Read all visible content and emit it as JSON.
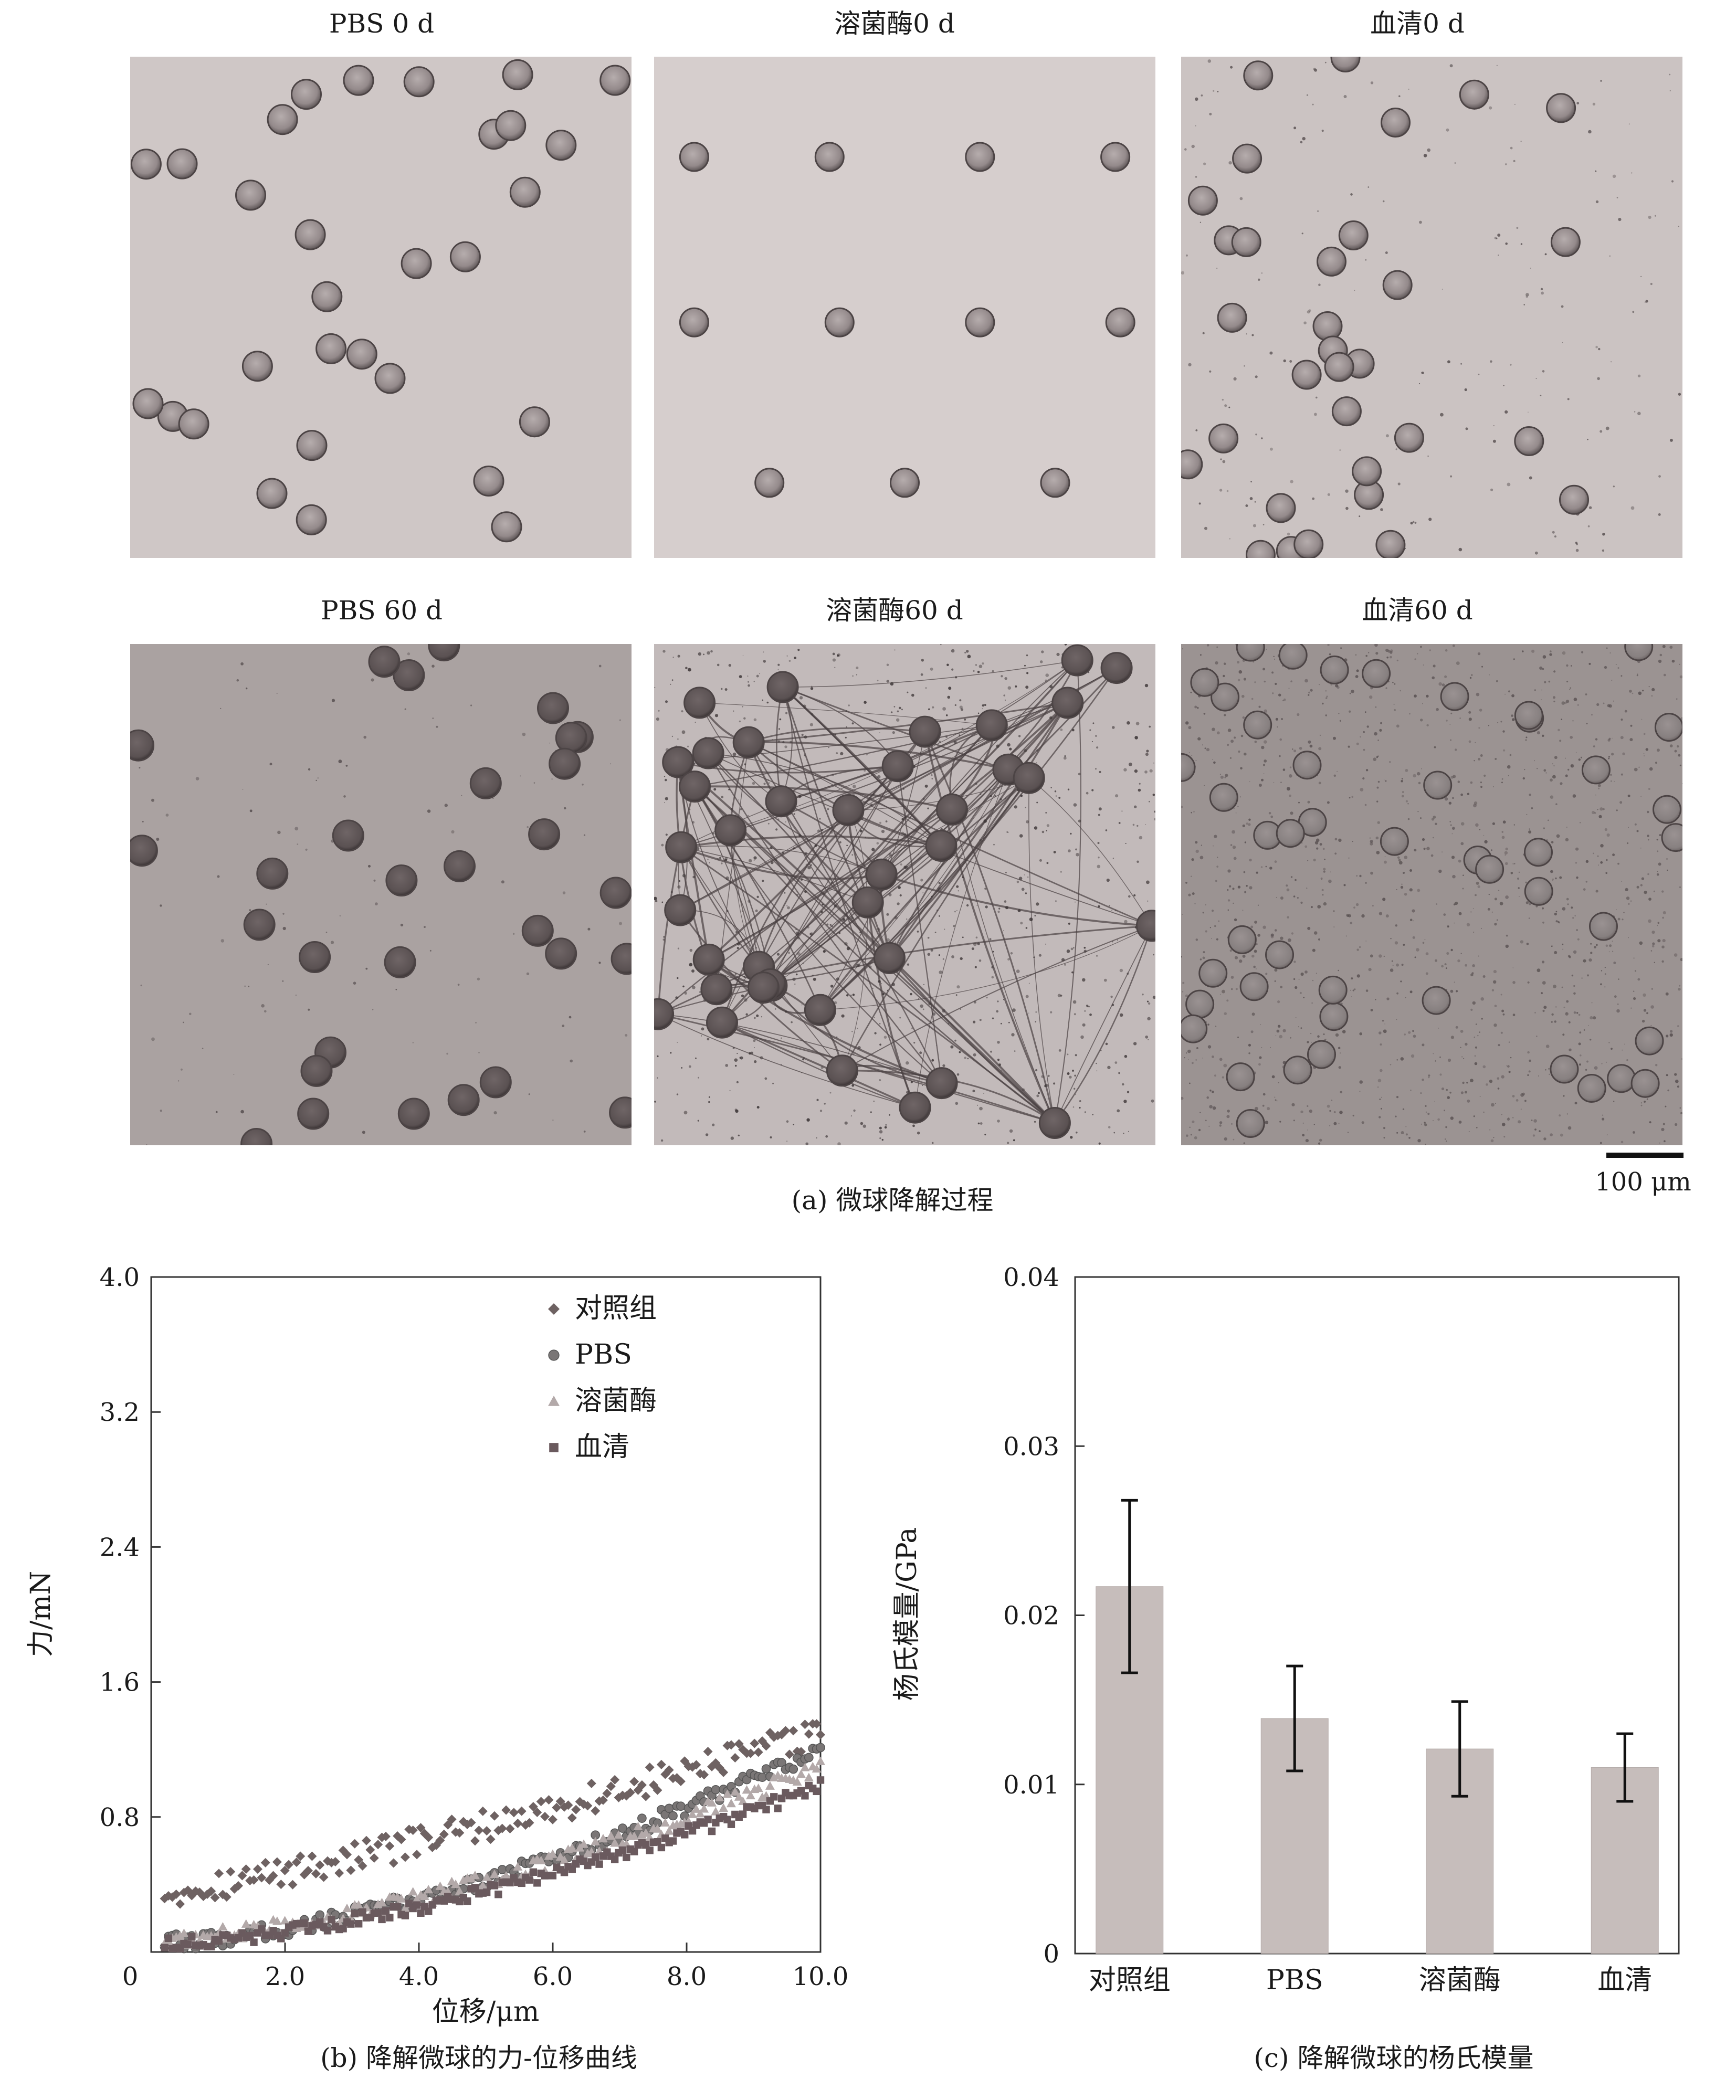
{
  "panel_a": {
    "caption": "(a) 微球降解过程",
    "scale_bar_label": "100 μm",
    "micrographs": [
      {
        "label": "PBS 0 d"
      },
      {
        "label": "溶菌酶0 d"
      },
      {
        "label": "血清0 d"
      },
      {
        "label": "PBS 60 d"
      },
      {
        "label": "溶菌酶60 d"
      },
      {
        "label": "血清60 d"
      }
    ]
  },
  "panel_b": {
    "caption": "(b) 降解微球的力-位移曲线",
    "chart_data": {
      "type": "scatter",
      "xlabel": "位移/μm",
      "ylabel": "力/mN",
      "xlim": [
        0,
        10
      ],
      "ylim": [
        0,
        4
      ],
      "x_ticks": [
        "0",
        "2.0",
        "4.0",
        "6.0",
        "8.0",
        "10.0"
      ],
      "y_ticks": [
        "0.8",
        "1.6",
        "2.4",
        "3.2",
        "4.0"
      ],
      "legend_position": "top-right",
      "series": [
        {
          "name": "对照组",
          "marker": "diamond",
          "color": "#6e6262",
          "start": 0.35,
          "end": 1.3,
          "power": 1.25,
          "noise": 0.09
        },
        {
          "name": "PBS",
          "marker": "circle",
          "color": "#7a7676",
          "start": 0.05,
          "end": 1.2,
          "power": 1.6,
          "noise": 0.05
        },
        {
          "name": "溶菌酶",
          "marker": "triangle",
          "color": "#b3a9a9",
          "start": 0.07,
          "end": 1.1,
          "power": 1.55,
          "noise": 0.05
        },
        {
          "name": "血清",
          "marker": "square",
          "color": "#6a5a5e",
          "start": 0.04,
          "end": 0.98,
          "power": 1.55,
          "noise": 0.04
        }
      ]
    }
  },
  "panel_c": {
    "caption": "(c) 降解微球的杨氏模量",
    "chart_data": {
      "type": "bar",
      "categories": [
        "对照组",
        "PBS",
        "溶菌酶",
        "血清"
      ],
      "values": [
        0.0217,
        0.0139,
        0.0121,
        0.011
      ],
      "errors": [
        0.0051,
        0.0031,
        0.0028,
        0.002
      ],
      "ylabel": "杨氏模量/GPa",
      "ylim": [
        0,
        0.04
      ],
      "y_ticks": [
        "0",
        "0.01",
        "0.02",
        "0.03",
        "0.04"
      ],
      "bar_color": "#c6bdbb"
    }
  }
}
